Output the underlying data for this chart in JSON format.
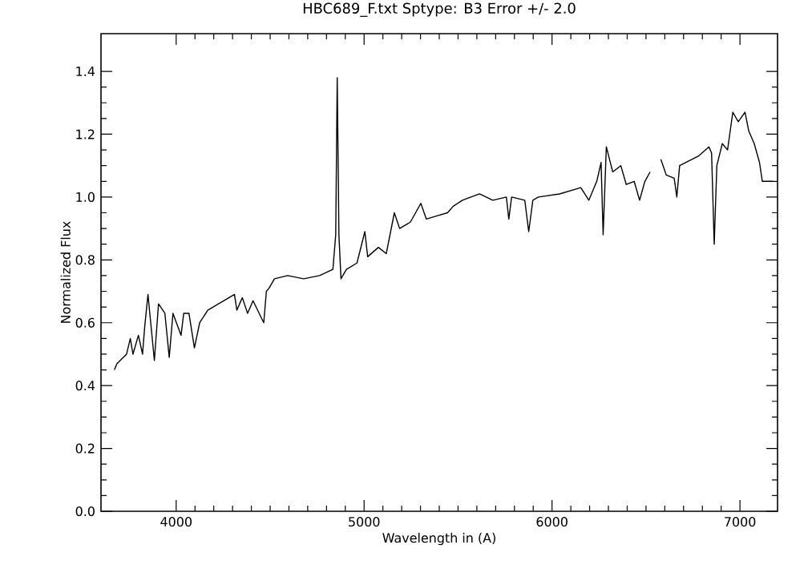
{
  "chart_data": {
    "type": "line",
    "title": "HBC689_F.txt    Sptype: B3       Error +/-    2.0",
    "xlabel": "Wavelength in (A)",
    "ylabel": "Normalized Flux",
    "xlim": [
      3600,
      7200
    ],
    "xticks": [
      4000,
      5000,
      6000,
      7000
    ],
    "ylim": [
      0,
      1.52
    ],
    "yticks": [
      {
        "value": 0,
        "label": "0.0"
      },
      {
        "value": 0.2,
        "label": "0.2"
      },
      {
        "value": 0.4,
        "label": "0.4"
      },
      {
        "value": 0.6,
        "label": "0.6"
      },
      {
        "value": 0.8,
        "label": "0.8"
      },
      {
        "value": 1.0,
        "label": "1.0"
      },
      {
        "value": 1.2,
        "label": "1.2"
      },
      {
        "value": 1.4,
        "label": "1.4"
      }
    ],
    "series": [
      {
        "color": "#000000",
        "x": [
          3671,
          3685,
          3736,
          3756,
          3770,
          3799,
          3821,
          3833,
          3850,
          3884,
          3906,
          3940,
          3963,
          3983,
          4026,
          4040,
          4068,
          4097,
          4125,
          4168,
          4225,
          4253,
          4310,
          4323,
          4352,
          4380,
          4409,
          4466,
          4480,
          4494,
          4523,
          4593,
          4678,
          4763,
          4834,
          4849,
          4857,
          4866,
          4877,
          4906,
          4962,
          5004,
          5019,
          5076,
          5118,
          5161,
          5189,
          5246,
          5302,
          5331,
          5387,
          5444,
          5473,
          5523,
          5614,
          5685,
          5757,
          5770,
          5785,
          5855,
          5876,
          5898,
          5927,
          6040,
          6153,
          6196,
          6238,
          6261,
          6272,
          6289,
          6323,
          6366,
          6395,
          6437,
          6466,
          6494,
          6522,
          6537,
          6565,
          6579,
          6608,
          6650,
          6664,
          6679,
          6778,
          6835,
          6849,
          6863,
          6877,
          6906,
          6934,
          6962,
          6991,
          7027,
          7047,
          7076,
          7104,
          7119,
          7175
        ],
        "values": [
          0.45,
          0.47,
          0.5,
          0.55,
          0.5,
          0.56,
          0.5,
          0.59,
          0.69,
          0.48,
          0.66,
          0.63,
          0.49,
          0.63,
          0.56,
          0.63,
          0.63,
          0.52,
          0.6,
          0.64,
          0.66,
          0.67,
          0.69,
          0.64,
          0.68,
          0.63,
          0.67,
          0.6,
          0.7,
          0.71,
          0.74,
          0.75,
          0.74,
          0.75,
          0.77,
          0.88,
          1.38,
          0.88,
          0.74,
          0.77,
          0.79,
          0.89,
          0.81,
          0.84,
          0.82,
          0.95,
          0.9,
          0.92,
          0.98,
          0.93,
          0.94,
          0.95,
          0.97,
          0.99,
          1.01,
          0.99,
          1.0,
          0.93,
          1.0,
          0.99,
          0.89,
          0.99,
          1.0,
          1.01,
          1.03,
          0.99,
          1.05,
          1.11,
          0.88,
          1.16,
          1.08,
          1.1,
          1.04,
          1.05,
          0.99,
          1.05,
          1.08,
          null,
          null,
          1.12,
          1.07,
          1.06,
          1.0,
          1.1,
          1.13,
          1.16,
          1.14,
          0.85,
          1.1,
          1.17,
          1.15,
          1.27,
          1.24,
          1.27,
          1.21,
          1.17,
          1.11,
          1.05,
          1.05
        ]
      }
    ]
  }
}
